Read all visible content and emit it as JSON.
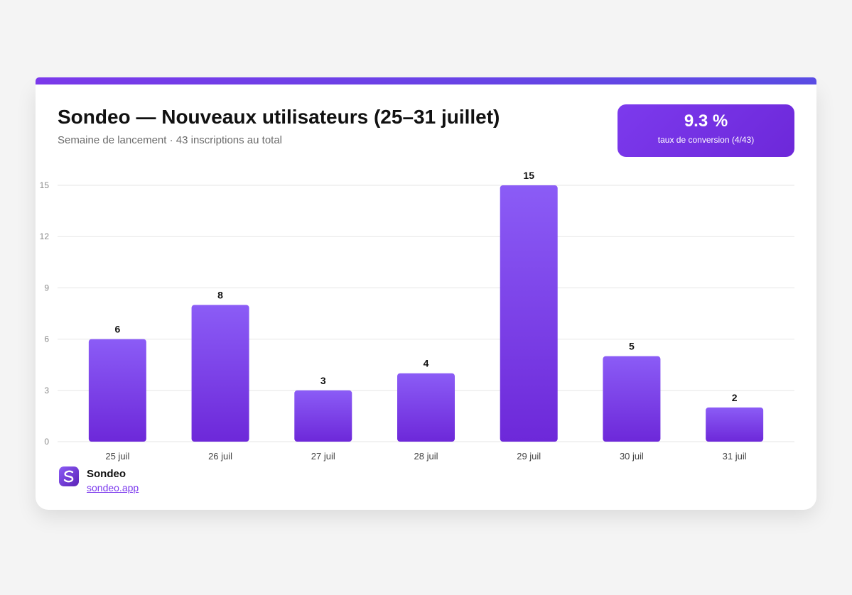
{
  "header": {
    "title": "Sondeo — Nouveaux utilisateurs (25–31 juillet)",
    "subtitle": "Semaine de lancement · 43 inscriptions au total"
  },
  "kpi": {
    "value": "9.3 %",
    "label": "taux de conversion (4/43)"
  },
  "brand": {
    "name": "Sondeo",
    "link": "sondeo.app",
    "logo_icon": "sondeo-logo-icon"
  },
  "colors": {
    "accent": "#7c3aed",
    "accent_light": "#8b5cf6",
    "accent_dark": "#6d28d9"
  },
  "chart_data": {
    "type": "bar",
    "categories": [
      "25 juil",
      "26 juil",
      "27 juil",
      "28 juil",
      "29 juil",
      "30 juil",
      "31 juil"
    ],
    "values": [
      6,
      8,
      3,
      4,
      15,
      5,
      2
    ],
    "yticks": [
      0,
      3,
      6,
      9,
      12,
      15
    ],
    "ylim": [
      0,
      15
    ],
    "grid": true,
    "data_labels": true,
    "legend": "none"
  }
}
